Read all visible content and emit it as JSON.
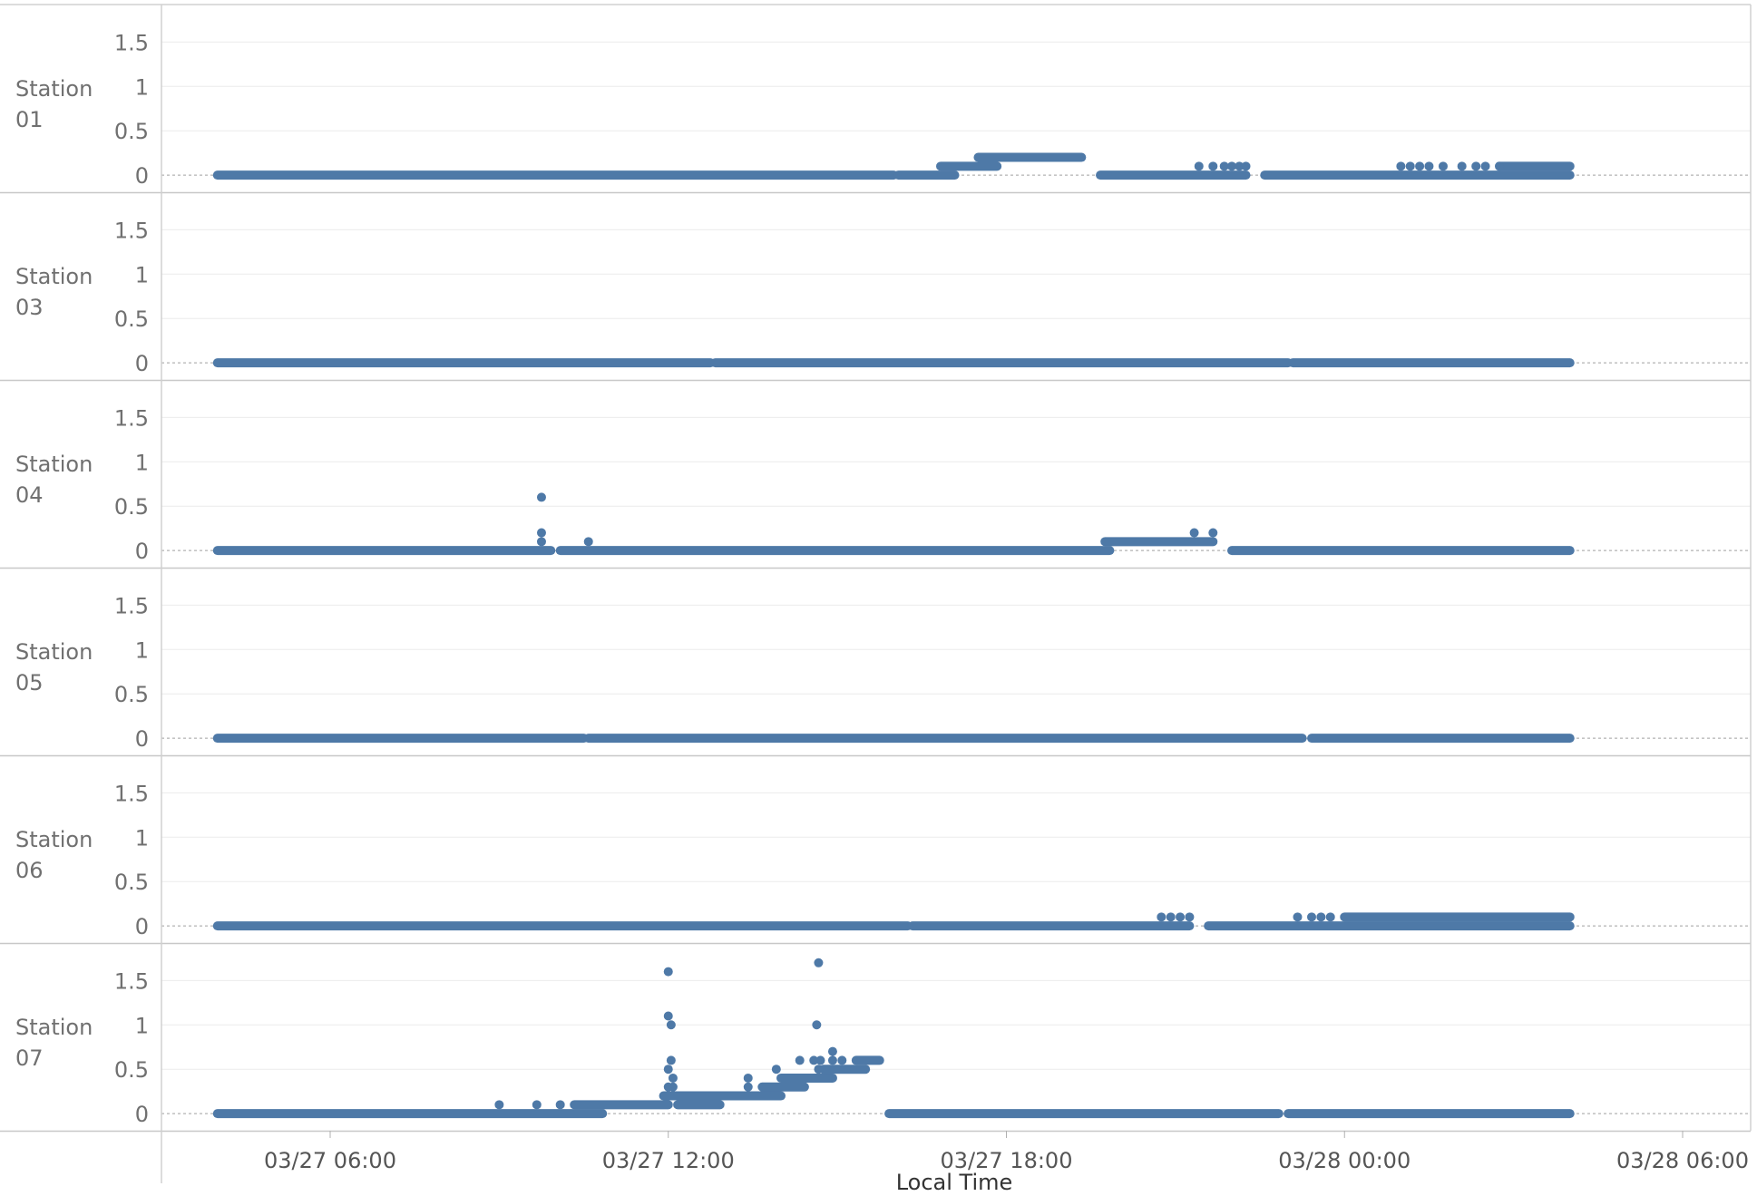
{
  "chart_data": {
    "type": "scatter",
    "xlabel": "Local Time",
    "x_ticks": [
      "03/27 06:00",
      "03/27 12:00",
      "03/27 18:00",
      "03/28 00:00",
      "03/28 06:00"
    ],
    "x_range": [
      "03/27 03:00",
      "03/28 06:30"
    ],
    "y_ticks": [
      "1.5",
      "1",
      "0.5",
      "0"
    ],
    "ylim": [
      -0.05,
      1.8
    ],
    "grid": true,
    "marker_color": "#4e79a7",
    "panels": [
      {
        "label_line1": "Station",
        "label_line2": "01",
        "runs": [
          {
            "x_start": "03/27 04:00",
            "x_end": "03/27 16:00",
            "y": 0
          },
          {
            "x_start": "03/27 16:05",
            "x_end": "03/27 17:05",
            "y": 0
          },
          {
            "x_start": "03/27 16:50",
            "x_end": "03/27 17:50",
            "y": 0.1
          },
          {
            "x_start": "03/27 17:30",
            "x_end": "03/27 19:20",
            "y": 0.2
          },
          {
            "x_start": "03/27 19:40",
            "x_end": "03/27 22:15",
            "y": 0
          },
          {
            "x_start": "03/27 22:35",
            "x_end": "03/28 04:00",
            "y": 0
          },
          {
            "x_start": "03/28 02:45",
            "x_end": "03/28 04:00",
            "y": 0.1
          }
        ],
        "points": [
          {
            "x": "03/27 21:25",
            "y": 0.1
          },
          {
            "x": "03/27 21:40",
            "y": 0.1
          },
          {
            "x": "03/27 21:52",
            "y": 0.1
          },
          {
            "x": "03/27 22:00",
            "y": 0.1
          },
          {
            "x": "03/27 22:08",
            "y": 0.1
          },
          {
            "x": "03/27 22:15",
            "y": 0.1
          },
          {
            "x": "03/28 01:00",
            "y": 0.1
          },
          {
            "x": "03/28 01:10",
            "y": 0.1
          },
          {
            "x": "03/28 01:20",
            "y": 0.1
          },
          {
            "x": "03/28 01:30",
            "y": 0.1
          },
          {
            "x": "03/28 01:45",
            "y": 0.1
          },
          {
            "x": "03/28 02:05",
            "y": 0.1
          },
          {
            "x": "03/28 02:20",
            "y": 0.1
          },
          {
            "x": "03/28 02:30",
            "y": 0.1
          },
          {
            "x": "03/28 02:45",
            "y": 0.1
          }
        ]
      },
      {
        "label_line1": "Station",
        "label_line2": "03",
        "runs": [
          {
            "x_start": "03/27 04:00",
            "x_end": "03/27 12:45",
            "y": 0
          },
          {
            "x_start": "03/27 12:50",
            "x_end": "03/27 23:00",
            "y": 0
          },
          {
            "x_start": "03/27 23:05",
            "x_end": "03/28 04:00",
            "y": 0
          }
        ],
        "points": []
      },
      {
        "label_line1": "Station",
        "label_line2": "04",
        "runs": [
          {
            "x_start": "03/27 04:00",
            "x_end": "03/27 09:55",
            "y": 0
          },
          {
            "x_start": "03/27 10:05",
            "x_end": "03/27 19:50",
            "y": 0
          },
          {
            "x_start": "03/27 19:45",
            "x_end": "03/27 21:40",
            "y": 0.1
          },
          {
            "x_start": "03/27 22:00",
            "x_end": "03/28 04:00",
            "y": 0
          }
        ],
        "points": [
          {
            "x": "03/27 09:45",
            "y": 0.6
          },
          {
            "x": "03/27 09:45",
            "y": 0.2
          },
          {
            "x": "03/27 09:45",
            "y": 0.1
          },
          {
            "x": "03/27 10:35",
            "y": 0.1
          },
          {
            "x": "03/27 21:20",
            "y": 0.2
          },
          {
            "x": "03/27 21:40",
            "y": 0.2
          }
        ]
      },
      {
        "label_line1": "Station",
        "label_line2": "05",
        "runs": [
          {
            "x_start": "03/27 04:00",
            "x_end": "03/27 10:30",
            "y": 0
          },
          {
            "x_start": "03/27 10:35",
            "x_end": "03/27 23:15",
            "y": 0
          },
          {
            "x_start": "03/27 23:25",
            "x_end": "03/28 04:00",
            "y": 0
          }
        ],
        "points": []
      },
      {
        "label_line1": "Station",
        "label_line2": "06",
        "runs": [
          {
            "x_start": "03/27 04:00",
            "x_end": "03/27 16:15",
            "y": 0
          },
          {
            "x_start": "03/27 16:20",
            "x_end": "03/27 21:15",
            "y": 0
          },
          {
            "x_start": "03/27 21:35",
            "x_end": "03/28 04:00",
            "y": 0
          },
          {
            "x_start": "03/28 00:00",
            "x_end": "03/28 04:00",
            "y": 0.1
          }
        ],
        "points": [
          {
            "x": "03/27 20:45",
            "y": 0.1
          },
          {
            "x": "03/27 20:55",
            "y": 0.1
          },
          {
            "x": "03/27 21:05",
            "y": 0.1
          },
          {
            "x": "03/27 21:15",
            "y": 0.1
          },
          {
            "x": "03/27 23:10",
            "y": 0.1
          },
          {
            "x": "03/27 23:25",
            "y": 0.1
          },
          {
            "x": "03/27 23:35",
            "y": 0.1
          },
          {
            "x": "03/27 23:45",
            "y": 0.1
          }
        ]
      },
      {
        "label_line1": "Station",
        "label_line2": "07",
        "runs": [
          {
            "x_start": "03/27 04:00",
            "x_end": "03/27 10:50",
            "y": 0
          },
          {
            "x_start": "03/27 10:20",
            "x_end": "03/27 12:00",
            "y": 0.1
          },
          {
            "x_start": "03/27 12:10",
            "x_end": "03/27 12:55",
            "y": 0.1
          },
          {
            "x_start": "03/27 11:55",
            "x_end": "03/27 14:00",
            "y": 0.2
          },
          {
            "x_start": "03/27 13:40",
            "x_end": "03/27 14:25",
            "y": 0.3
          },
          {
            "x_start": "03/27 14:00",
            "x_end": "03/27 14:55",
            "y": 0.4
          },
          {
            "x_start": "03/27 14:45",
            "x_end": "03/27 15:30",
            "y": 0.5
          },
          {
            "x_start": "03/27 15:20",
            "x_end": "03/27 15:45",
            "y": 0.6
          },
          {
            "x_start": "03/27 15:55",
            "x_end": "03/27 22:50",
            "y": 0
          },
          {
            "x_start": "03/27 23:00",
            "x_end": "03/28 04:00",
            "y": 0
          }
        ],
        "points": [
          {
            "x": "03/27 09:00",
            "y": 0.1
          },
          {
            "x": "03/27 09:40",
            "y": 0.1
          },
          {
            "x": "03/27 10:05",
            "y": 0.1
          },
          {
            "x": "03/27 12:00",
            "y": 1.6
          },
          {
            "x": "03/27 12:00",
            "y": 1.1
          },
          {
            "x": "03/27 12:03",
            "y": 1.0
          },
          {
            "x": "03/27 12:00",
            "y": 0.5
          },
          {
            "x": "03/27 12:03",
            "y": 0.6
          },
          {
            "x": "03/27 12:05",
            "y": 0.4
          },
          {
            "x": "03/27 12:00",
            "y": 0.3
          },
          {
            "x": "03/27 12:05",
            "y": 0.3
          },
          {
            "x": "03/27 13:25",
            "y": 0.4
          },
          {
            "x": "03/27 13:25",
            "y": 0.3
          },
          {
            "x": "03/27 13:55",
            "y": 0.5
          },
          {
            "x": "03/27 14:20",
            "y": 0.6
          },
          {
            "x": "03/27 14:40",
            "y": 1.7
          },
          {
            "x": "03/27 14:38",
            "y": 1.0
          },
          {
            "x": "03/27 14:35",
            "y": 0.6
          },
          {
            "x": "03/27 14:42",
            "y": 0.6
          },
          {
            "x": "03/27 14:40",
            "y": 0.5
          },
          {
            "x": "03/27 14:55",
            "y": 0.7
          },
          {
            "x": "03/27 14:55",
            "y": 0.6
          },
          {
            "x": "03/27 15:05",
            "y": 0.6
          }
        ]
      }
    ]
  }
}
